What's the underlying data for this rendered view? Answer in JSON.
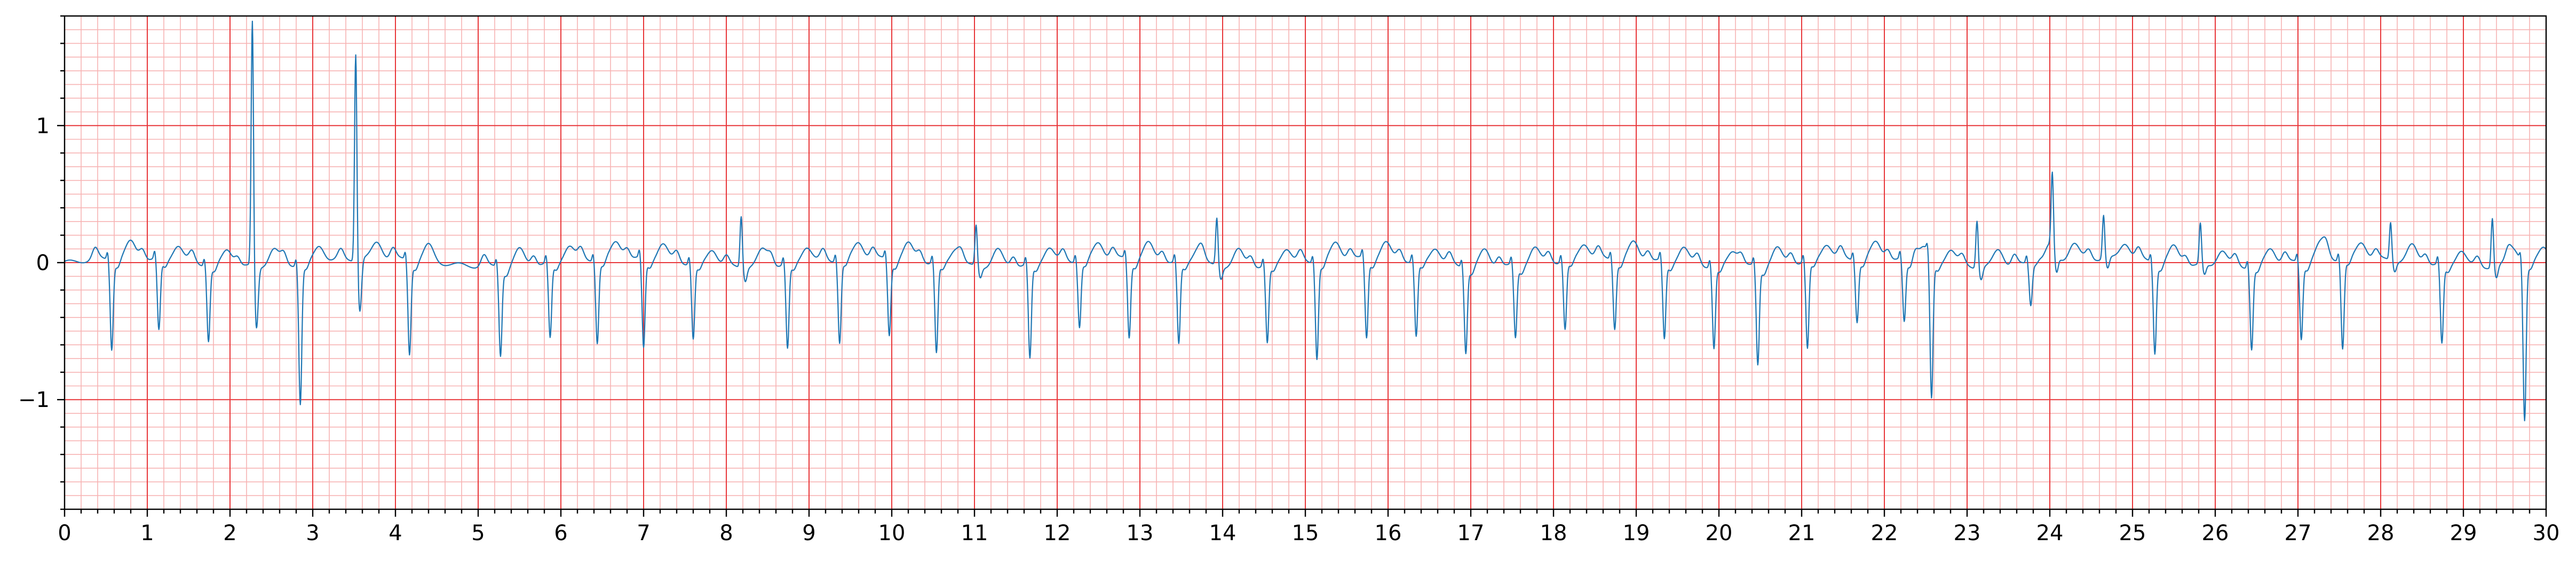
{
  "chart_data": {
    "type": "line",
    "title": "",
    "xlabel": "",
    "ylabel": "",
    "xlim": [
      0,
      30
    ],
    "ylim": [
      -1.8,
      1.8
    ],
    "grid": true,
    "x_major_ticks": [
      0,
      1,
      2,
      3,
      4,
      5,
      6,
      7,
      8,
      9,
      10,
      11,
      12,
      13,
      14,
      15,
      16,
      17,
      18,
      19,
      20,
      21,
      22,
      23,
      24,
      25,
      26,
      27,
      28,
      29,
      30
    ],
    "x_minor_step": 0.2,
    "y_major_ticks": [
      -1,
      0,
      1
    ],
    "y_minor_step": 0.1,
    "x_tick_labels": [
      "0",
      "1",
      "2",
      "3",
      "4",
      "5",
      "6",
      "7",
      "8",
      "9",
      "10",
      "11",
      "12",
      "13",
      "14",
      "15",
      "16",
      "17",
      "18",
      "19",
      "20",
      "21",
      "22",
      "23",
      "24",
      "25",
      "26",
      "27",
      "28",
      "29",
      "30"
    ],
    "y_tick_labels": [
      "−1",
      "0",
      "1"
    ],
    "colors": {
      "trace": "#1f77b4",
      "grid_major": "#e8373a",
      "grid_minor": "#f7b3b3",
      "background": "#ffffff"
    },
    "series": [
      {
        "beats": [
          {
            "t": 0.55,
            "r": -0.65
          },
          {
            "t": 1.12,
            "r": -0.52
          },
          {
            "t": 1.72,
            "r": -0.55
          },
          {
            "t": 2.27,
            "r": 1.8
          },
          {
            "t": 2.83,
            "r": -1.02
          },
          {
            "t": 3.52,
            "r": 1.52
          },
          {
            "t": 4.15,
            "r": -0.68
          },
          {
            "t": 5.25,
            "r": -0.64
          },
          {
            "t": 5.85,
            "r": -0.55
          },
          {
            "t": 6.42,
            "r": -0.6
          },
          {
            "t": 6.98,
            "r": -0.65
          },
          {
            "t": 7.58,
            "r": -0.55
          },
          {
            "t": 8.18,
            "r": 0.38
          },
          {
            "t": 8.72,
            "r": -0.62
          },
          {
            "t": 9.35,
            "r": -0.6
          },
          {
            "t": 9.95,
            "r": -0.55
          },
          {
            "t": 10.52,
            "r": -0.66
          },
          {
            "t": 11.02,
            "r": 0.3
          },
          {
            "t": 11.65,
            "r": -0.69
          },
          {
            "t": 12.25,
            "r": -0.48
          },
          {
            "t": 12.85,
            "r": -0.57
          },
          {
            "t": 13.45,
            "r": -0.6
          },
          {
            "t": 13.93,
            "r": 0.35
          },
          {
            "t": 14.52,
            "r": -0.57
          },
          {
            "t": 15.12,
            "r": -0.7
          },
          {
            "t": 15.72,
            "r": -0.58
          },
          {
            "t": 16.32,
            "r": -0.55
          },
          {
            "t": 16.92,
            "r": -0.62
          },
          {
            "t": 17.52,
            "r": -0.53
          },
          {
            "t": 18.12,
            "r": -0.5
          },
          {
            "t": 18.72,
            "r": -0.5
          },
          {
            "t": 19.32,
            "r": -0.57
          },
          {
            "t": 19.92,
            "r": -0.6
          },
          {
            "t": 20.45,
            "r": -0.72
          },
          {
            "t": 21.05,
            "r": -0.64
          },
          {
            "t": 21.65,
            "r": -0.45
          },
          {
            "t": 22.22,
            "r": -0.45
          },
          {
            "t": 22.55,
            "r": -1.02
          },
          {
            "t": 23.12,
            "r": 0.35
          },
          {
            "t": 23.75,
            "r": -0.3
          },
          {
            "t": 24.03,
            "r": 0.54
          },
          {
            "t": 24.65,
            "r": 0.32
          },
          {
            "t": 25.25,
            "r": -0.66
          },
          {
            "t": 25.82,
            "r": 0.3
          },
          {
            "t": 26.42,
            "r": -0.6
          },
          {
            "t": 27.02,
            "r": -0.56
          },
          {
            "t": 27.52,
            "r": -0.65
          },
          {
            "t": 28.12,
            "r": 0.28
          },
          {
            "t": 28.72,
            "r": -0.58
          },
          {
            "t": 29.35,
            "r": 0.36
          },
          {
            "t": 29.72,
            "r": -1.15
          }
        ]
      }
    ]
  }
}
